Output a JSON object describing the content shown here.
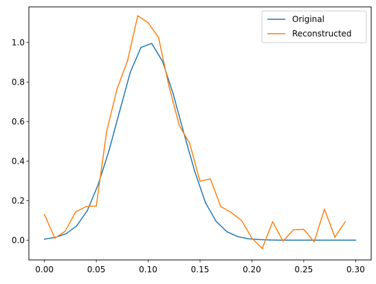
{
  "chart_data": {
    "type": "line",
    "title": "",
    "xlabel": "",
    "ylabel": "",
    "xlim": [
      -0.015,
      0.315
    ],
    "ylim": [
      -0.1,
      1.18
    ],
    "x_ticks": [
      "0.00",
      "0.05",
      "0.10",
      "0.15",
      "0.20",
      "0.25",
      "0.30"
    ],
    "y_ticks": [
      "0.0",
      "0.2",
      "0.4",
      "0.6",
      "0.8",
      "1.0"
    ],
    "grid": false,
    "legend_position": "top-right",
    "series": [
      {
        "name": "Original",
        "color": "#1f77b4",
        "x": [
          0.0,
          0.0103,
          0.0207,
          0.031,
          0.0414,
          0.0517,
          0.0621,
          0.0724,
          0.0828,
          0.0931,
          0.1034,
          0.1138,
          0.1241,
          0.1345,
          0.1448,
          0.1552,
          0.1655,
          0.1759,
          0.1862,
          0.1966,
          0.2069,
          0.2172,
          0.2276,
          0.2379,
          0.2483,
          0.2586,
          0.269,
          0.2793,
          0.2897,
          0.3
        ],
        "y": [
          0.005,
          0.014,
          0.032,
          0.072,
          0.15,
          0.28,
          0.45,
          0.65,
          0.85,
          0.975,
          0.995,
          0.905,
          0.74,
          0.54,
          0.35,
          0.19,
          0.095,
          0.043,
          0.018,
          0.007,
          0.003,
          0.001,
          0.0,
          0.0,
          0.0,
          0.0,
          0.0,
          0.0,
          0.0,
          0.0
        ]
      },
      {
        "name": "Reconstructed",
        "color": "#ff7f0e",
        "x": [
          0.0,
          0.01,
          0.02,
          0.03,
          0.04,
          0.05,
          0.06,
          0.07,
          0.08,
          0.09,
          0.1,
          0.11,
          0.12,
          0.13,
          0.14,
          0.15,
          0.16,
          0.17,
          0.18,
          0.19,
          0.2,
          0.21,
          0.22,
          0.23,
          0.24,
          0.25,
          0.26,
          0.27,
          0.28,
          0.29
        ],
        "y": [
          0.13,
          0.01,
          0.045,
          0.142,
          0.17,
          0.173,
          0.55,
          0.765,
          0.905,
          1.135,
          1.1,
          1.025,
          0.78,
          0.58,
          0.49,
          0.298,
          0.31,
          0.17,
          0.14,
          0.1,
          0.01,
          -0.042,
          0.093,
          -0.005,
          0.052,
          0.055,
          -0.008,
          0.157,
          0.015,
          0.093
        ]
      }
    ]
  }
}
